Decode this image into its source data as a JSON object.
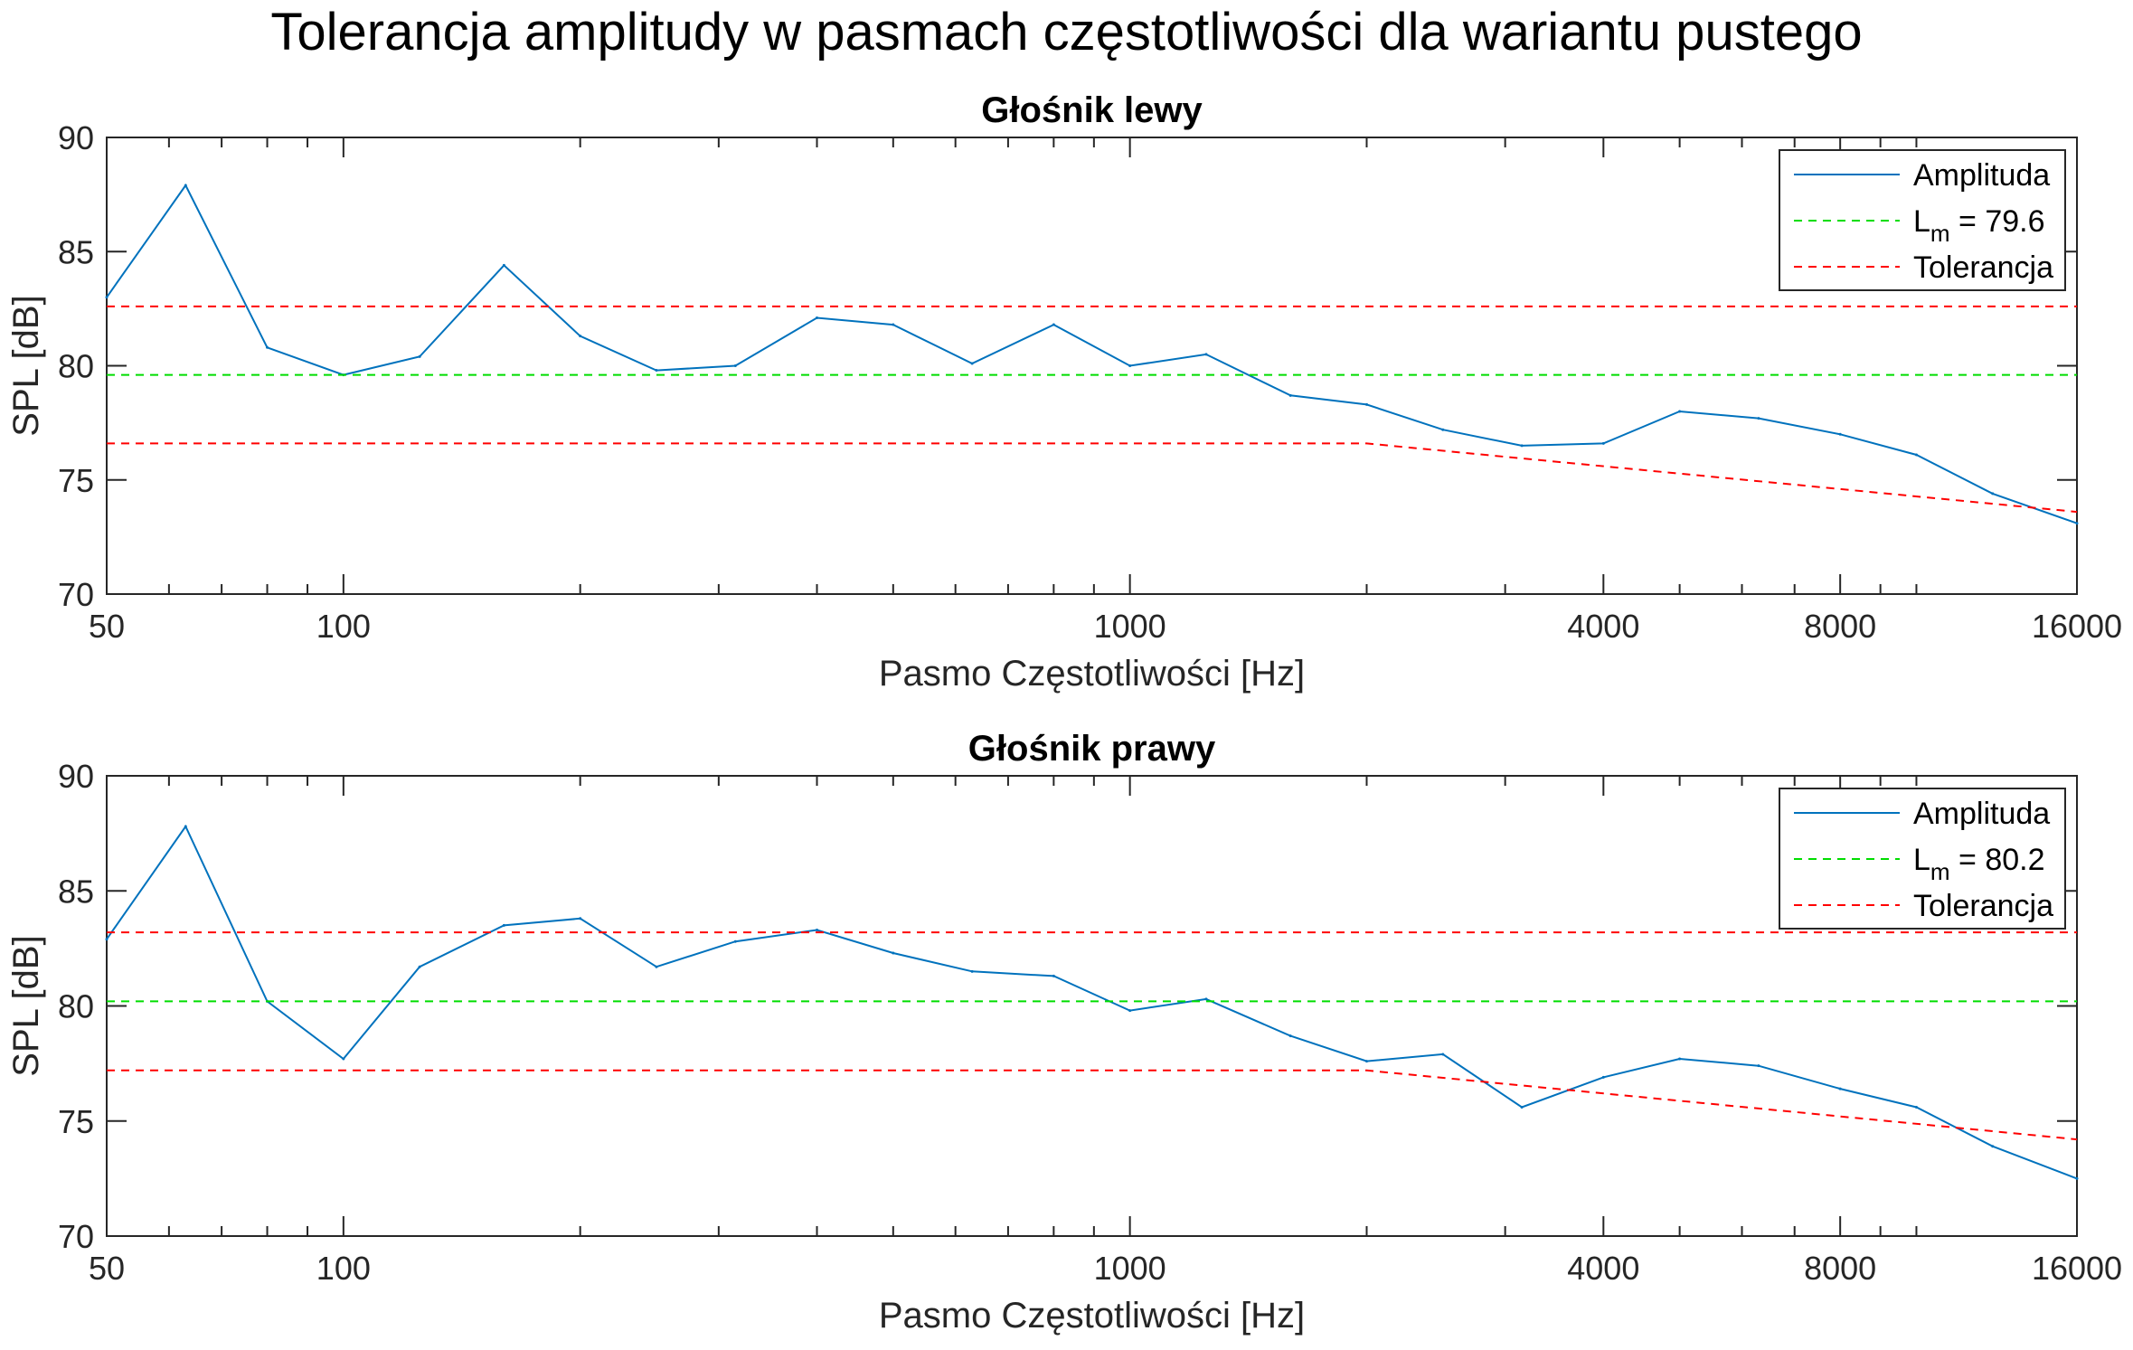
{
  "figure": {
    "title": "Tolerancja amplitudy w pasmach częstotliwości dla wariantu pustego"
  },
  "chart_data": [
    {
      "type": "line",
      "title": "Głośnik lewy",
      "xlabel": "Pasmo Częstotliwości [Hz]",
      "ylabel": "SPL [dB]",
      "xscale": "log",
      "xlim": [
        50,
        16000
      ],
      "ylim": [
        70,
        90
      ],
      "xticks": [
        50,
        100,
        1000,
        4000,
        8000,
        16000
      ],
      "xtick_labels": [
        "50",
        "100",
        "1000",
        "4000",
        "8000",
        "16000"
      ],
      "yticks": [
        70,
        75,
        80,
        85,
        90
      ],
      "ytick_labels": [
        "70",
        "75",
        "80",
        "85",
        "90"
      ],
      "legend": {
        "placement": "top-right",
        "lm_label": "L",
        "lm_sub": "m",
        "lm_value": "= 79.6"
      },
      "x": [
        50,
        63,
        80,
        100,
        125,
        160,
        200,
        250,
        315,
        400,
        500,
        630,
        800,
        1000,
        1250,
        1600,
        2000,
        2500,
        3150,
        4000,
        5000,
        6300,
        8000,
        10000,
        12500,
        16000
      ],
      "series": [
        {
          "name": "Amplituda",
          "style": "solid",
          "color": "#0072BD",
          "values": [
            83.0,
            87.9,
            80.8,
            79.6,
            80.4,
            84.4,
            81.3,
            79.8,
            80.0,
            82.1,
            81.8,
            80.1,
            81.8,
            80.0,
            80.5,
            78.7,
            78.3,
            77.2,
            76.5,
            76.6,
            78.0,
            77.7,
            77.0,
            76.1,
            74.4,
            73.1
          ]
        },
        {
          "name": "L_m = 79.6",
          "style": "dashed",
          "color": "#00DD00",
          "x": [
            50,
            16000
          ],
          "values": [
            79.6,
            79.6
          ]
        },
        {
          "name": "Tolerancja",
          "style": "dashed",
          "color": "#FF0000",
          "x": [
            50,
            16000
          ],
          "values": [
            82.6,
            82.6
          ]
        },
        {
          "name": "Tolerancja",
          "style": "dashed",
          "color": "#FF0000",
          "legend": false,
          "x": [
            50,
            2000,
            16000
          ],
          "values": [
            76.6,
            76.6,
            73.6
          ]
        }
      ]
    },
    {
      "type": "line",
      "title": "Głośnik prawy",
      "xlabel": "Pasmo Częstotliwości [Hz]",
      "ylabel": "SPL [dB]",
      "xscale": "log",
      "xlim": [
        50,
        16000
      ],
      "ylim": [
        70,
        90
      ],
      "xticks": [
        50,
        100,
        1000,
        4000,
        8000,
        16000
      ],
      "xtick_labels": [
        "50",
        "100",
        "1000",
        "4000",
        "8000",
        "16000"
      ],
      "yticks": [
        70,
        75,
        80,
        85,
        90
      ],
      "ytick_labels": [
        "70",
        "75",
        "80",
        "85",
        "90"
      ],
      "legend": {
        "placement": "top-right",
        "lm_label": "L",
        "lm_sub": "m",
        "lm_value": "= 80.2"
      },
      "x": [
        50,
        63,
        80,
        100,
        125,
        160,
        200,
        250,
        315,
        400,
        500,
        630,
        800,
        1000,
        1250,
        1600,
        2000,
        2500,
        3150,
        4000,
        5000,
        6300,
        8000,
        10000,
        12500,
        16000
      ],
      "series": [
        {
          "name": "Amplituda",
          "style": "solid",
          "color": "#0072BD",
          "values": [
            82.9,
            87.8,
            80.2,
            77.7,
            81.7,
            83.5,
            83.8,
            81.7,
            82.8,
            83.3,
            82.3,
            81.5,
            81.3,
            79.8,
            80.3,
            78.7,
            77.6,
            77.9,
            75.6,
            76.9,
            77.7,
            77.4,
            76.4,
            75.6,
            73.9,
            72.5
          ]
        },
        {
          "name": "L_m = 80.2",
          "style": "dashed",
          "color": "#00DD00",
          "x": [
            50,
            16000
          ],
          "values": [
            80.2,
            80.2
          ]
        },
        {
          "name": "Tolerancja",
          "style": "dashed",
          "color": "#FF0000",
          "x": [
            50,
            16000
          ],
          "values": [
            83.2,
            83.2
          ]
        },
        {
          "name": "Tolerancja",
          "style": "dashed",
          "color": "#FF0000",
          "legend": false,
          "x": [
            50,
            2000,
            16000
          ],
          "values": [
            77.2,
            77.2,
            74.2
          ]
        }
      ]
    }
  ]
}
